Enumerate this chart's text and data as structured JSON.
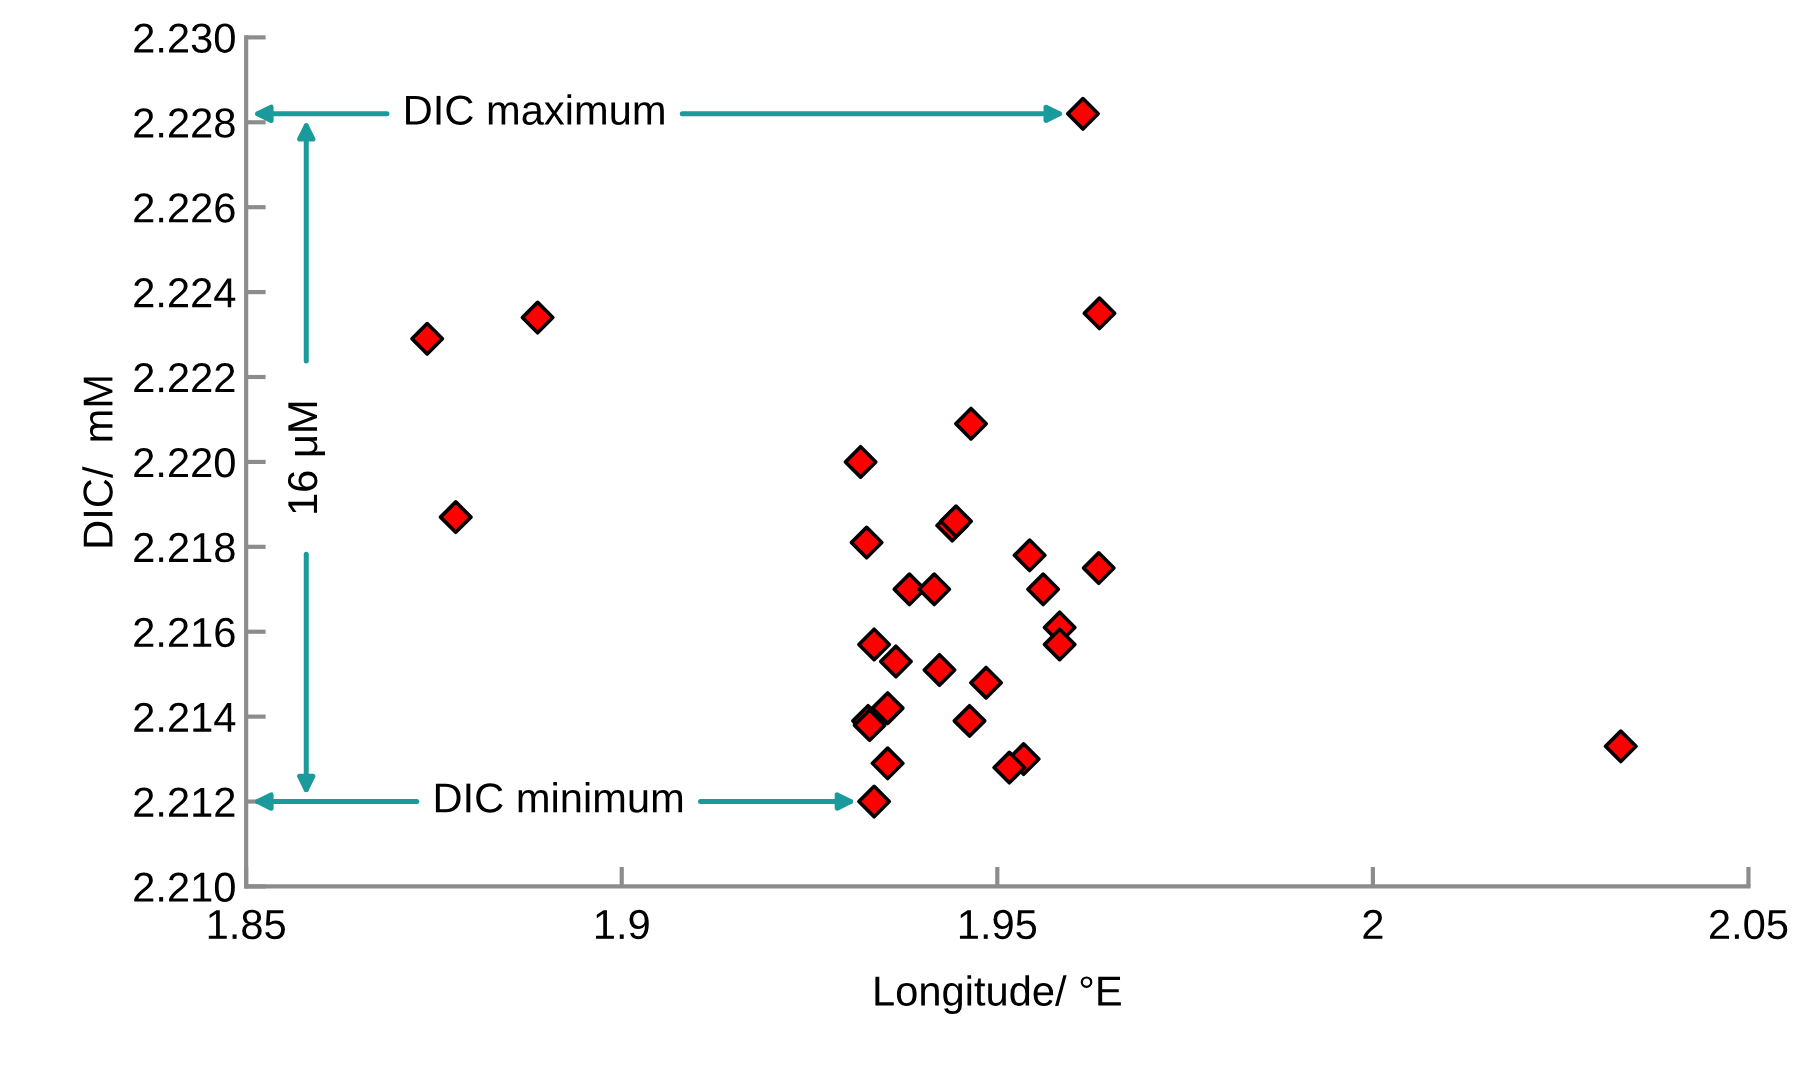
{
  "chart_data": {
    "type": "scatter",
    "xlabel": "Longitude/ °E",
    "ylabel": "DIC/  mM",
    "x": [
      1.8741,
      1.8888,
      1.8779,
      1.9614,
      1.9636,
      1.9465,
      1.9318,
      1.944,
      1.9445,
      1.9326,
      1.9543,
      1.9635,
      1.9383,
      1.9416,
      1.9561,
      1.9583,
      1.9583,
      1.9336,
      1.9365,
      1.9423,
      1.9485,
      1.9354,
      1.9328,
      1.933,
      1.9463,
      1.9354,
      1.9535,
      1.9516,
      1.9336,
      2.033
    ],
    "series": [
      {
        "color": "#ff0000",
        "values": [
          2.2229,
          2.2234,
          2.2187,
          2.2282,
          2.2235,
          2.2209,
          2.22,
          2.2185,
          2.2186,
          2.2181,
          2.2178,
          2.2175,
          2.217,
          2.217,
          2.217,
          2.2161,
          2.2157,
          2.2157,
          2.2153,
          2.2151,
          2.2148,
          2.2142,
          2.2139,
          2.2138,
          2.2139,
          2.2129,
          2.213,
          2.2128,
          2.212,
          2.2133
        ]
      }
    ],
    "marker": "diamond",
    "xlim": [
      1.85,
      2.05
    ],
    "xticks": [
      1.85,
      1.9,
      1.95,
      2,
      2.05
    ],
    "ylim": [
      2.21,
      2.23
    ],
    "yticks": [
      {
        "value": 2.21,
        "label": "2.210"
      },
      {
        "value": 2.212,
        "label": "2.212"
      },
      {
        "value": 2.214,
        "label": "2.214"
      },
      {
        "value": 2.216,
        "label": "2.216"
      },
      {
        "value": 2.218,
        "label": "2.218"
      },
      {
        "value": 2.22,
        "label": "2.220"
      },
      {
        "value": 2.222,
        "label": "2.222"
      },
      {
        "value": 2.224,
        "label": "2.224"
      },
      {
        "value": 2.226,
        "label": "2.226"
      },
      {
        "value": 2.228,
        "label": "2.228"
      },
      {
        "value": 2.23,
        "label": "2.230"
      }
    ],
    "grid": false,
    "legend": false,
    "annotations": [
      "DIC maximum",
      "DIC minimum",
      "16 μM"
    ]
  }
}
